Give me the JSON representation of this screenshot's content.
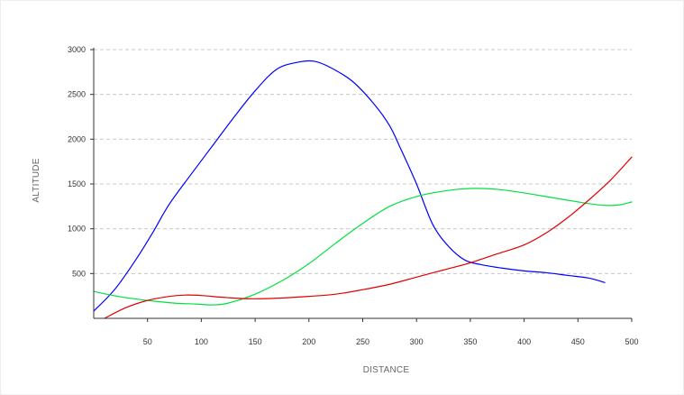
{
  "chart_data": {
    "type": "line",
    "title": "",
    "xlabel": "DISTANCE",
    "ylabel": "ALTITUDE",
    "xlim": [
      0,
      500
    ],
    "ylim": [
      0,
      3000
    ],
    "x_ticks": [
      50,
      100,
      150,
      200,
      250,
      300,
      350,
      400,
      450,
      500
    ],
    "y_ticks": [
      500,
      1000,
      1500,
      2000,
      2500,
      3000
    ],
    "grid": "horizontal dashed",
    "legend": "none",
    "series": [
      {
        "color": "#0000ff",
        "points": [
          [
            0,
            80
          ],
          [
            20,
            330
          ],
          [
            40,
            670
          ],
          [
            55,
            960
          ],
          [
            70,
            1270
          ],
          [
            90,
            1600
          ],
          [
            110,
            1920
          ],
          [
            130,
            2240
          ],
          [
            150,
            2540
          ],
          [
            170,
            2780
          ],
          [
            190,
            2860
          ],
          [
            205,
            2870
          ],
          [
            220,
            2800
          ],
          [
            240,
            2650
          ],
          [
            260,
            2400
          ],
          [
            275,
            2150
          ],
          [
            285,
            1900
          ],
          [
            300,
            1500
          ],
          [
            315,
            1050
          ],
          [
            330,
            800
          ],
          [
            345,
            650
          ],
          [
            360,
            600
          ],
          [
            380,
            560
          ],
          [
            400,
            530
          ],
          [
            420,
            510
          ],
          [
            440,
            480
          ],
          [
            460,
            450
          ],
          [
            475,
            400
          ]
        ]
      },
      {
        "color": "#00e040",
        "points": [
          [
            0,
            300
          ],
          [
            25,
            240
          ],
          [
            50,
            200
          ],
          [
            75,
            170
          ],
          [
            95,
            160
          ],
          [
            110,
            150
          ],
          [
            125,
            170
          ],
          [
            150,
            270
          ],
          [
            175,
            420
          ],
          [
            200,
            610
          ],
          [
            225,
            840
          ],
          [
            250,
            1060
          ],
          [
            275,
            1250
          ],
          [
            300,
            1360
          ],
          [
            325,
            1420
          ],
          [
            350,
            1450
          ],
          [
            375,
            1440
          ],
          [
            400,
            1400
          ],
          [
            425,
            1350
          ],
          [
            450,
            1300
          ],
          [
            470,
            1265
          ],
          [
            480,
            1260
          ],
          [
            490,
            1270
          ],
          [
            500,
            1300
          ]
        ]
      },
      {
        "color": "#e00000",
        "points": [
          [
            10,
            0
          ],
          [
            30,
            120
          ],
          [
            50,
            200
          ],
          [
            70,
            245
          ],
          [
            85,
            260
          ],
          [
            100,
            255
          ],
          [
            120,
            235
          ],
          [
            140,
            220
          ],
          [
            160,
            220
          ],
          [
            180,
            230
          ],
          [
            200,
            245
          ],
          [
            225,
            270
          ],
          [
            250,
            320
          ],
          [
            275,
            380
          ],
          [
            300,
            460
          ],
          [
            325,
            540
          ],
          [
            350,
            620
          ],
          [
            375,
            720
          ],
          [
            400,
            820
          ],
          [
            420,
            950
          ],
          [
            440,
            1120
          ],
          [
            460,
            1320
          ],
          [
            480,
            1540
          ],
          [
            500,
            1800
          ]
        ]
      }
    ]
  }
}
